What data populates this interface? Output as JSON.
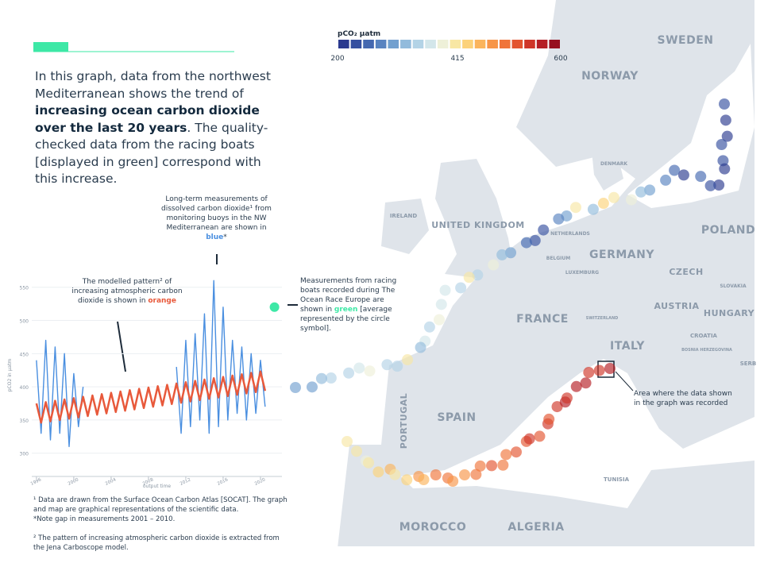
{
  "intro": {
    "parts": [
      "In this graph, data from the northwest Mediterranean shows the trend of ",
      "increasing ocean carbon dioxide over the last 20 years",
      ". The quality-checked data from the racing boats [displayed in green] correspond with this increase."
    ]
  },
  "annotations": {
    "buoys": [
      "Long-term measurements of dissolved carbon dioxide¹ from monitoring buoys in the NW Mediterranean are shown in ",
      "blue",
      "*"
    ],
    "model": [
      "The modelled pattern² of increasing atmospheric carbon dioxide is shown in ",
      "orange"
    ],
    "boats": [
      "Measurements from racing boats recorded during The Ocean Race Europe are shown in ",
      "green",
      " [average represented by the circle symbol]."
    ],
    "area": "Area where the data shown in the graph was recorded"
  },
  "footnotes": [
    "¹ Data are drawn from the Surface Ocean Carbon Atlas [SOCAT]. The graph and map are graphical representations of the scientific data.",
    "*Note gap in measurements 2001 – 2010.",
    "² The pattern of increasing atmospheric carbon dioxide is extracted from the Jena Carboscope model."
  ],
  "chart_data": {
    "type": "line",
    "y_label": "pCO2 in µatm",
    "x_label": "output time",
    "grid": true,
    "xlim": [
      1995.5,
      2022.3
    ],
    "xticks": [
      1996,
      2000,
      2004,
      2008,
      2012,
      2016,
      2020
    ],
    "ylim": [
      265,
      570
    ],
    "yticks": [
      300,
      350,
      400,
      450,
      500,
      550
    ],
    "series": [
      {
        "name": "orange",
        "color": "#e8593b",
        "x": [
          1996,
          1996.5,
          1997,
          1997.5,
          1998,
          1998.5,
          1999,
          1999.5,
          2000,
          2000.5,
          2001,
          2001.5,
          2002,
          2002.5,
          2003,
          2003.5,
          2004,
          2004.5,
          2005,
          2005.5,
          2006,
          2006.5,
          2007,
          2007.5,
          2008,
          2008.5,
          2009,
          2009.5,
          2010,
          2010.5,
          2011,
          2011.5,
          2012,
          2012.5,
          2013,
          2013.5,
          2014,
          2014.5,
          2015,
          2015.5,
          2016,
          2016.5,
          2017,
          2017.5,
          2018,
          2018.5,
          2019,
          2019.5,
          2020,
          2020.5
        ],
        "values": [
          375,
          346,
          377,
          348,
          379,
          350,
          381,
          352,
          383,
          354,
          385,
          356,
          387,
          358,
          389,
          360,
          391,
          362,
          393,
          364,
          395,
          366,
          397,
          368,
          399,
          370,
          401,
          372,
          403,
          374,
          405,
          376,
          407,
          378,
          409,
          380,
          411,
          382,
          413,
          384,
          415,
          386,
          417,
          388,
          419,
          390,
          421,
          392,
          423,
          394
        ]
      },
      {
        "name": "blue",
        "color": "#4a8fe0",
        "x": [
          1996,
          1996.5,
          1997,
          1997.5,
          1998,
          1998.5,
          1999,
          1999.5,
          2000,
          2000.5,
          2001,
          2005,
          2011,
          2011.5,
          2012,
          2012.5,
          2013,
          2013.5,
          2014,
          2014.5,
          2015,
          2015.5,
          2016,
          2016.5,
          2017,
          2017.5,
          2018,
          2018.5,
          2019,
          2019.5,
          2020,
          2020.5
        ],
        "values": [
          440,
          330,
          470,
          320,
          460,
          330,
          450,
          310,
          420,
          340,
          400,
          null,
          430,
          330,
          470,
          340,
          480,
          350,
          510,
          330,
          560,
          340,
          520,
          350,
          470,
          360,
          460,
          350,
          450,
          360,
          440,
          370
        ]
      },
      {
        "name": "green",
        "color": "#3de8a6",
        "type": "scatter",
        "x": [
          2021.5
        ],
        "values": [
          520
        ]
      }
    ]
  },
  "colorbar": {
    "title": "pCO₂ µatm",
    "range": [
      200,
      600
    ],
    "ticks": [
      200,
      415,
      600
    ],
    "colors": [
      "#2b3a8f",
      "#3550a0",
      "#4468b0",
      "#5883c0",
      "#72a0cf",
      "#92bbdc",
      "#b3d3e6",
      "#d3e6ea",
      "#eef0d8",
      "#f8e7a4",
      "#fcd27a",
      "#fbb45c",
      "#f79548",
      "#f0743a",
      "#e3542f",
      "#cf3528",
      "#b51d24",
      "#96101f"
    ]
  },
  "map": {
    "labels": [
      "SWEDEN",
      "NORWAY",
      "DENMARK",
      "IRELAND",
      "UNITED KINGDOM",
      "NETHERLANDS",
      "BELGIUM",
      "LUXEMBURG",
      "GERMANY",
      "POLAND",
      "CZECH",
      "SLOVAKIA",
      "AUSTRIA",
      "HUNGARY",
      "FRANCE",
      "SWITZERLAND",
      "CROATIA",
      "BOSNIA HERZEGOVINA",
      "SERB",
      "ITALY",
      "PORTUGAL",
      "SPAIN",
      "TUNISIA",
      "MOROCCO",
      "ALGERIA"
    ],
    "tracks": [
      [
        230,
        220,
        210,
        225,
        240,
        215,
        205,
        230,
        250,
        220,
        260,
        280,
        300,
        320,
        380,
        410,
        440,
        330,
        420,
        300,
        280,
        230,
        240,
        250,
        300,
        330,
        380,
        350,
        400,
        340,
        370,
        360,
        380,
        350,
        360,
        330,
        420,
        340,
        350,
        390,
        360,
        340,
        350,
        330,
        310,
        300
      ],
      [
        420,
        410,
        380,
        400,
        430,
        450,
        420,
        440,
        470,
        460,
        490,
        500,
        480,
        470,
        510,
        500,
        520,
        490,
        510,
        530,
        520,
        540,
        530,
        550,
        520,
        540,
        560,
        550,
        570,
        560,
        540,
        550,
        560
      ]
    ]
  }
}
